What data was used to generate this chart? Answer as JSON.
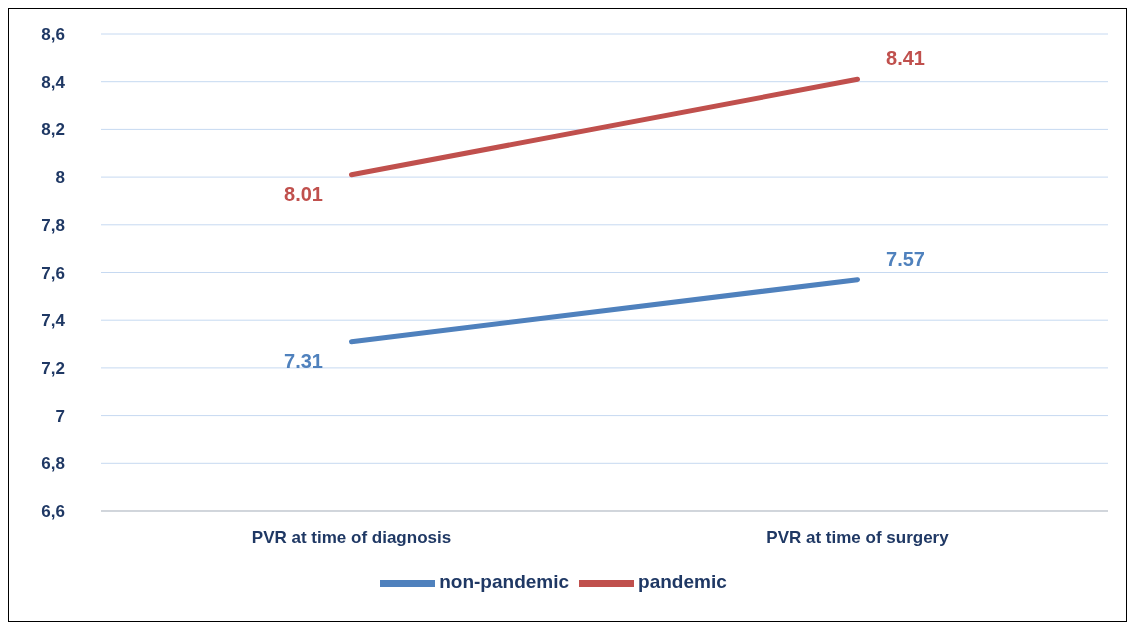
{
  "chart_data": {
    "type": "line",
    "categories": [
      "PVR at time of diagnosis",
      "PVR at time of surgery"
    ],
    "series": [
      {
        "name": "non-pandemic",
        "color": "#4f81bd",
        "values": [
          7.31,
          7.57
        ]
      },
      {
        "name": "pandemic",
        "color": "#c0504d",
        "values": [
          8.01,
          8.41
        ]
      }
    ],
    "ylim": [
      6.6,
      8.6
    ],
    "yticks": [
      {
        "value": 6.6,
        "label": "6,6"
      },
      {
        "value": 6.8,
        "label": "6,8"
      },
      7,
      {
        "value": 7.2,
        "label": "7,2"
      },
      {
        "value": 7.4,
        "label": "7,4"
      },
      {
        "value": 7.6,
        "label": "7,6"
      },
      {
        "value": 7.8,
        "label": "7,8"
      },
      8,
      {
        "value": 8.2,
        "label": "8,2"
      },
      {
        "value": 8.4,
        "label": "8,4"
      },
      {
        "value": 8.6,
        "label": "8,6"
      }
    ],
    "grid": "y",
    "legend": "bottom",
    "data_labels": true,
    "marker": "none",
    "line_style": "solid"
  }
}
